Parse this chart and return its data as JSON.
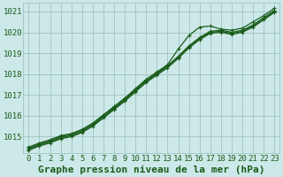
{
  "background_color": "#cce8e8",
  "plot_bg_color": "#cce8e8",
  "grid_color": "#99bbbb",
  "line_color": "#1a5c1a",
  "marker_color": "#1a5c1a",
  "title": "Graphe pression niveau de la mer (hPa)",
  "xlim": [
    -0.5,
    23.5
  ],
  "ylim": [
    1014.2,
    1021.4
  ],
  "yticks": [
    1015,
    1016,
    1017,
    1018,
    1019,
    1020,
    1021
  ],
  "xticks": [
    0,
    1,
    2,
    3,
    4,
    5,
    6,
    7,
    8,
    9,
    10,
    11,
    12,
    13,
    14,
    15,
    16,
    17,
    18,
    19,
    20,
    21,
    22,
    23
  ],
  "series": [
    [
      1014.5,
      1014.7,
      1014.85,
      1015.05,
      1015.15,
      1015.35,
      1015.65,
      1016.05,
      1016.45,
      1016.85,
      1017.3,
      1017.75,
      1018.1,
      1018.45,
      1019.2,
      1019.85,
      1020.25,
      1020.3,
      1020.15,
      1020.1,
      1020.2,
      1020.5,
      1020.8,
      1021.15
    ],
    [
      1014.45,
      1014.65,
      1014.8,
      1015.0,
      1015.1,
      1015.3,
      1015.6,
      1016.0,
      1016.4,
      1016.8,
      1017.25,
      1017.7,
      1018.05,
      1018.4,
      1018.85,
      1019.35,
      1019.75,
      1020.05,
      1020.1,
      1020.0,
      1020.1,
      1020.35,
      1020.7,
      1021.05
    ],
    [
      1014.4,
      1014.6,
      1014.75,
      1014.95,
      1015.05,
      1015.25,
      1015.55,
      1015.95,
      1016.35,
      1016.75,
      1017.2,
      1017.65,
      1018.0,
      1018.35,
      1018.8,
      1019.3,
      1019.7,
      1020.0,
      1020.05,
      1019.95,
      1020.05,
      1020.3,
      1020.65,
      1021.0
    ],
    [
      1014.35,
      1014.55,
      1014.7,
      1014.9,
      1015.0,
      1015.2,
      1015.5,
      1015.9,
      1016.3,
      1016.7,
      1017.15,
      1017.6,
      1017.95,
      1018.3,
      1018.75,
      1019.25,
      1019.65,
      1019.95,
      1020.0,
      1019.9,
      1020.0,
      1020.25,
      1020.6,
      1020.95
    ]
  ],
  "title_fontsize": 8,
  "tick_fontsize": 6.5,
  "marker_size": 2.5,
  "line_width": 0.9
}
